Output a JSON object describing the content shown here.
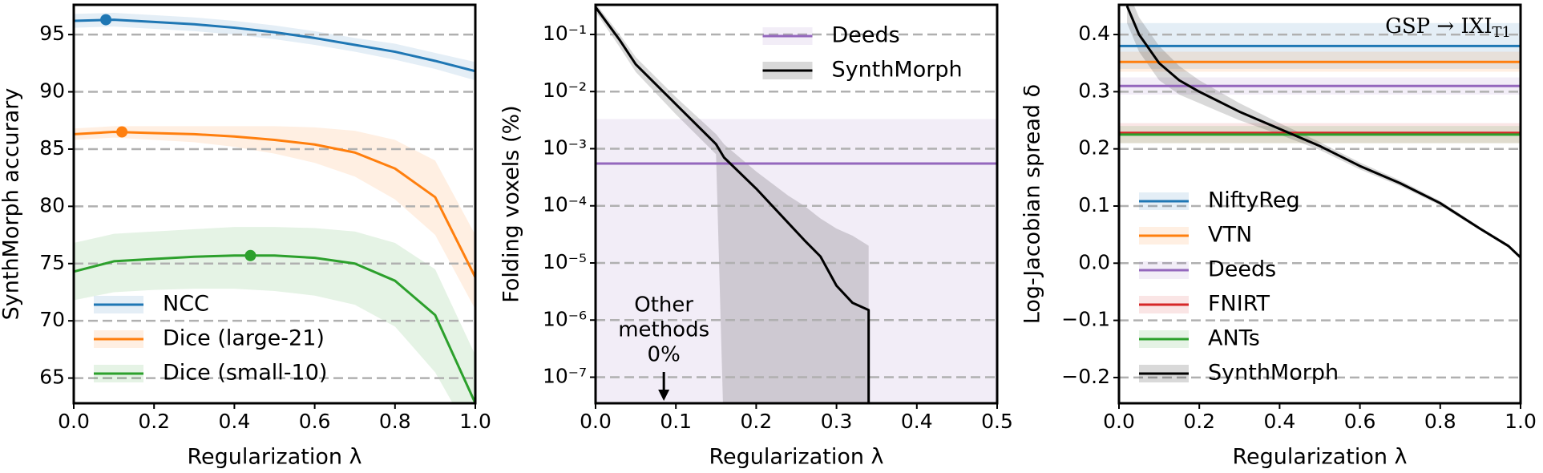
{
  "chart_data": [
    {
      "type": "line",
      "xlabel": "Regularization λ",
      "ylabel": "SynthMorph accurary",
      "xlim": [
        0,
        1
      ],
      "ylim": [
        62.8,
        97.6
      ],
      "xticks": [
        {
          "value": 0,
          "label": "0.0"
        },
        {
          "value": 0.2,
          "label": "0.2"
        },
        {
          "value": 0.4,
          "label": "0.4"
        },
        {
          "value": 0.6,
          "label": "0.6"
        },
        {
          "value": 0.8,
          "label": "0.8"
        },
        {
          "value": 1,
          "label": "1.0"
        }
      ],
      "yticks": [
        65,
        70,
        75,
        80,
        85,
        90,
        95
      ],
      "grid": true,
      "legend": "lower left",
      "series": [
        {
          "name": "NCC",
          "color": "#1f77b4",
          "x": [
            0,
            0.1,
            0.2,
            0.3,
            0.4,
            0.5,
            0.6,
            0.7,
            0.8,
            0.9,
            1.0
          ],
          "values": [
            96.2,
            96.3,
            96.1,
            95.9,
            95.6,
            95.2,
            94.7,
            94.1,
            93.5,
            92.7,
            91.8
          ],
          "lower": [
            95.6,
            95.7,
            95.5,
            95.3,
            95.0,
            94.6,
            94.1,
            93.5,
            92.8,
            92.0,
            91.0
          ],
          "upper": [
            96.8,
            96.9,
            96.7,
            96.5,
            96.2,
            95.8,
            95.3,
            94.7,
            94.2,
            93.4,
            92.6
          ],
          "optimum": {
            "x": 0.08,
            "y": 96.3
          }
        },
        {
          "name": "Dice (large-21)",
          "color": "#ff7f0e",
          "x": [
            0,
            0.1,
            0.2,
            0.3,
            0.4,
            0.5,
            0.6,
            0.7,
            0.8,
            0.9,
            1.0
          ],
          "values": [
            86.3,
            86.5,
            86.4,
            86.3,
            86.1,
            85.8,
            85.4,
            84.7,
            83.3,
            80.8,
            73.8
          ],
          "lower": [
            85.8,
            86.0,
            85.8,
            85.6,
            85.2,
            84.6,
            83.8,
            82.6,
            80.6,
            77.5,
            71.0
          ],
          "upper": [
            86.8,
            87.0,
            87.0,
            87.0,
            87.0,
            87.0,
            86.9,
            86.6,
            85.8,
            84.0,
            77.5
          ],
          "optimum": {
            "x": 0.12,
            "y": 86.5
          }
        },
        {
          "name": "Dice (small-10)",
          "color": "#2ca02c",
          "x": [
            0,
            0.1,
            0.2,
            0.3,
            0.4,
            0.5,
            0.6,
            0.7,
            0.8,
            0.9,
            1.0
          ],
          "values": [
            74.3,
            75.2,
            75.4,
            75.6,
            75.7,
            75.7,
            75.5,
            75.0,
            73.5,
            70.5,
            62.8
          ],
          "lower": [
            71.8,
            72.5,
            72.7,
            72.8,
            72.8,
            72.6,
            72.2,
            71.4,
            69.5,
            65.5,
            58.0
          ],
          "upper": [
            76.8,
            77.6,
            77.8,
            78.0,
            78.2,
            78.2,
            78.1,
            77.8,
            76.8,
            74.5,
            67.0
          ],
          "optimum": {
            "x": 0.44,
            "y": 75.7
          }
        }
      ]
    },
    {
      "type": "line",
      "xlabel": "Regularization λ",
      "ylabel": "Folding voxels (%)",
      "yscale": "log",
      "xlim": [
        0,
        0.5
      ],
      "ylim": [
        3.5e-08,
        0.33
      ],
      "xticks": [
        {
          "value": 0,
          "label": "0.0"
        },
        {
          "value": 0.1,
          "label": "0.1"
        },
        {
          "value": 0.2,
          "label": "0.2"
        },
        {
          "value": 0.3,
          "label": "0.3"
        },
        {
          "value": 0.4,
          "label": "0.4"
        },
        {
          "value": 0.5,
          "label": "0.5"
        }
      ],
      "yticks": [
        {
          "value": 1e-07,
          "label": "10⁻⁷"
        },
        {
          "value": 1e-06,
          "label": "10⁻⁶"
        },
        {
          "value": 1e-05,
          "label": "10⁻⁵"
        },
        {
          "value": 0.0001,
          "label": "10⁻⁴"
        },
        {
          "value": 0.001,
          "label": "10⁻³"
        },
        {
          "value": 0.01,
          "label": "10⁻²"
        },
        {
          "value": 0.1,
          "label": "10⁻¹"
        }
      ],
      "grid": true,
      "legend": "upper center",
      "annotation": {
        "text": [
          "Other",
          "methods",
          "0%"
        ],
        "x": 0.085
      },
      "series": [
        {
          "name": "Deeds",
          "color": "#9467bd",
          "value": 0.00055,
          "band": [
            3.5e-08,
            0.0033
          ]
        },
        {
          "name": "SynthMorph",
          "color": "#000000",
          "x": [
            0,
            0.03,
            0.05,
            0.1,
            0.15,
            0.16,
            0.2,
            0.24,
            0.26,
            0.28,
            0.3,
            0.32,
            0.34,
            0.34
          ],
          "values": [
            0.3,
            0.08,
            0.03,
            0.006,
            0.0012,
            0.0007,
            0.0002,
            5e-05,
            2.5e-05,
            1.3e-05,
            4e-06,
            2e-06,
            1.5e-06,
            0
          ],
          "upper": [
            0.35,
            0.1,
            0.04,
            0.008,
            0.0018,
            0.0012,
            0.0004,
            0.00015,
            0.0001,
            6e-05,
            4e-05,
            3e-05,
            2e-05,
            2e-05
          ],
          "lower": [
            0.25,
            0.06,
            0.022,
            0.004,
            0.0008,
            0,
            0,
            0,
            0,
            0,
            0,
            0,
            0,
            0
          ]
        }
      ]
    },
    {
      "type": "line",
      "xlabel": "Regularization λ",
      "ylabel": "Log-Jacobian spread δ",
      "xlim": [
        0,
        1
      ],
      "ylim": [
        -0.245,
        0.452
      ],
      "xticks": [
        {
          "value": 0,
          "label": "0.0"
        },
        {
          "value": 0.2,
          "label": "0.2"
        },
        {
          "value": 0.4,
          "label": "0.4"
        },
        {
          "value": 0.6,
          "label": "0.6"
        },
        {
          "value": 0.8,
          "label": "0.8"
        },
        {
          "value": 1,
          "label": "1.0"
        }
      ],
      "yticks": [
        {
          "value": -0.2,
          "label": "−0.2"
        },
        {
          "value": -0.1,
          "label": "−0.1"
        },
        {
          "value": 0,
          "label": "0.0"
        },
        {
          "value": 0.1,
          "label": "0.1"
        },
        {
          "value": 0.2,
          "label": "0.2"
        },
        {
          "value": 0.3,
          "label": "0.3"
        },
        {
          "value": 0.4,
          "label": "0.4"
        }
      ],
      "grid": true,
      "legend": "lower left",
      "annotation": {
        "text": "GSP → IXI",
        "subscript": "T1"
      },
      "series": [
        {
          "name": "NiftyReg",
          "color": "#1f77b4",
          "value": 0.38,
          "band": [
            0.34,
            0.42
          ]
        },
        {
          "name": "VTN",
          "color": "#ff7f0e",
          "value": 0.352,
          "band": [
            0.335,
            0.37
          ]
        },
        {
          "name": "Deeds",
          "color": "#9467bd",
          "value": 0.31,
          "band": [
            0.295,
            0.325
          ]
        },
        {
          "name": "FNIRT",
          "color": "#d62728",
          "value": 0.228,
          "band": [
            0.21,
            0.245
          ]
        },
        {
          "name": "ANTs",
          "color": "#2ca02c",
          "value": 0.225,
          "band": [
            0.21,
            0.24
          ]
        },
        {
          "name": "SynthMorph",
          "color": "#000000",
          "x": [
            0.02,
            0.05,
            0.1,
            0.15,
            0.2,
            0.3,
            0.4,
            0.5,
            0.6,
            0.7,
            0.8,
            0.9,
            0.97,
            1.0
          ],
          "values": [
            0.45,
            0.4,
            0.35,
            0.32,
            0.3,
            0.265,
            0.235,
            0.205,
            0.17,
            0.14,
            0.105,
            0.06,
            0.03,
            0.01
          ],
          "upper": [
            0.48,
            0.43,
            0.38,
            0.345,
            0.32,
            0.28,
            0.245,
            0.212,
            0.176,
            0.145,
            0.109,
            0.063,
            0.033,
            0.013
          ],
          "lower": [
            0.42,
            0.37,
            0.32,
            0.295,
            0.28,
            0.25,
            0.225,
            0.198,
            0.164,
            0.135,
            0.101,
            0.057,
            0.027,
            0.007
          ]
        }
      ]
    }
  ]
}
